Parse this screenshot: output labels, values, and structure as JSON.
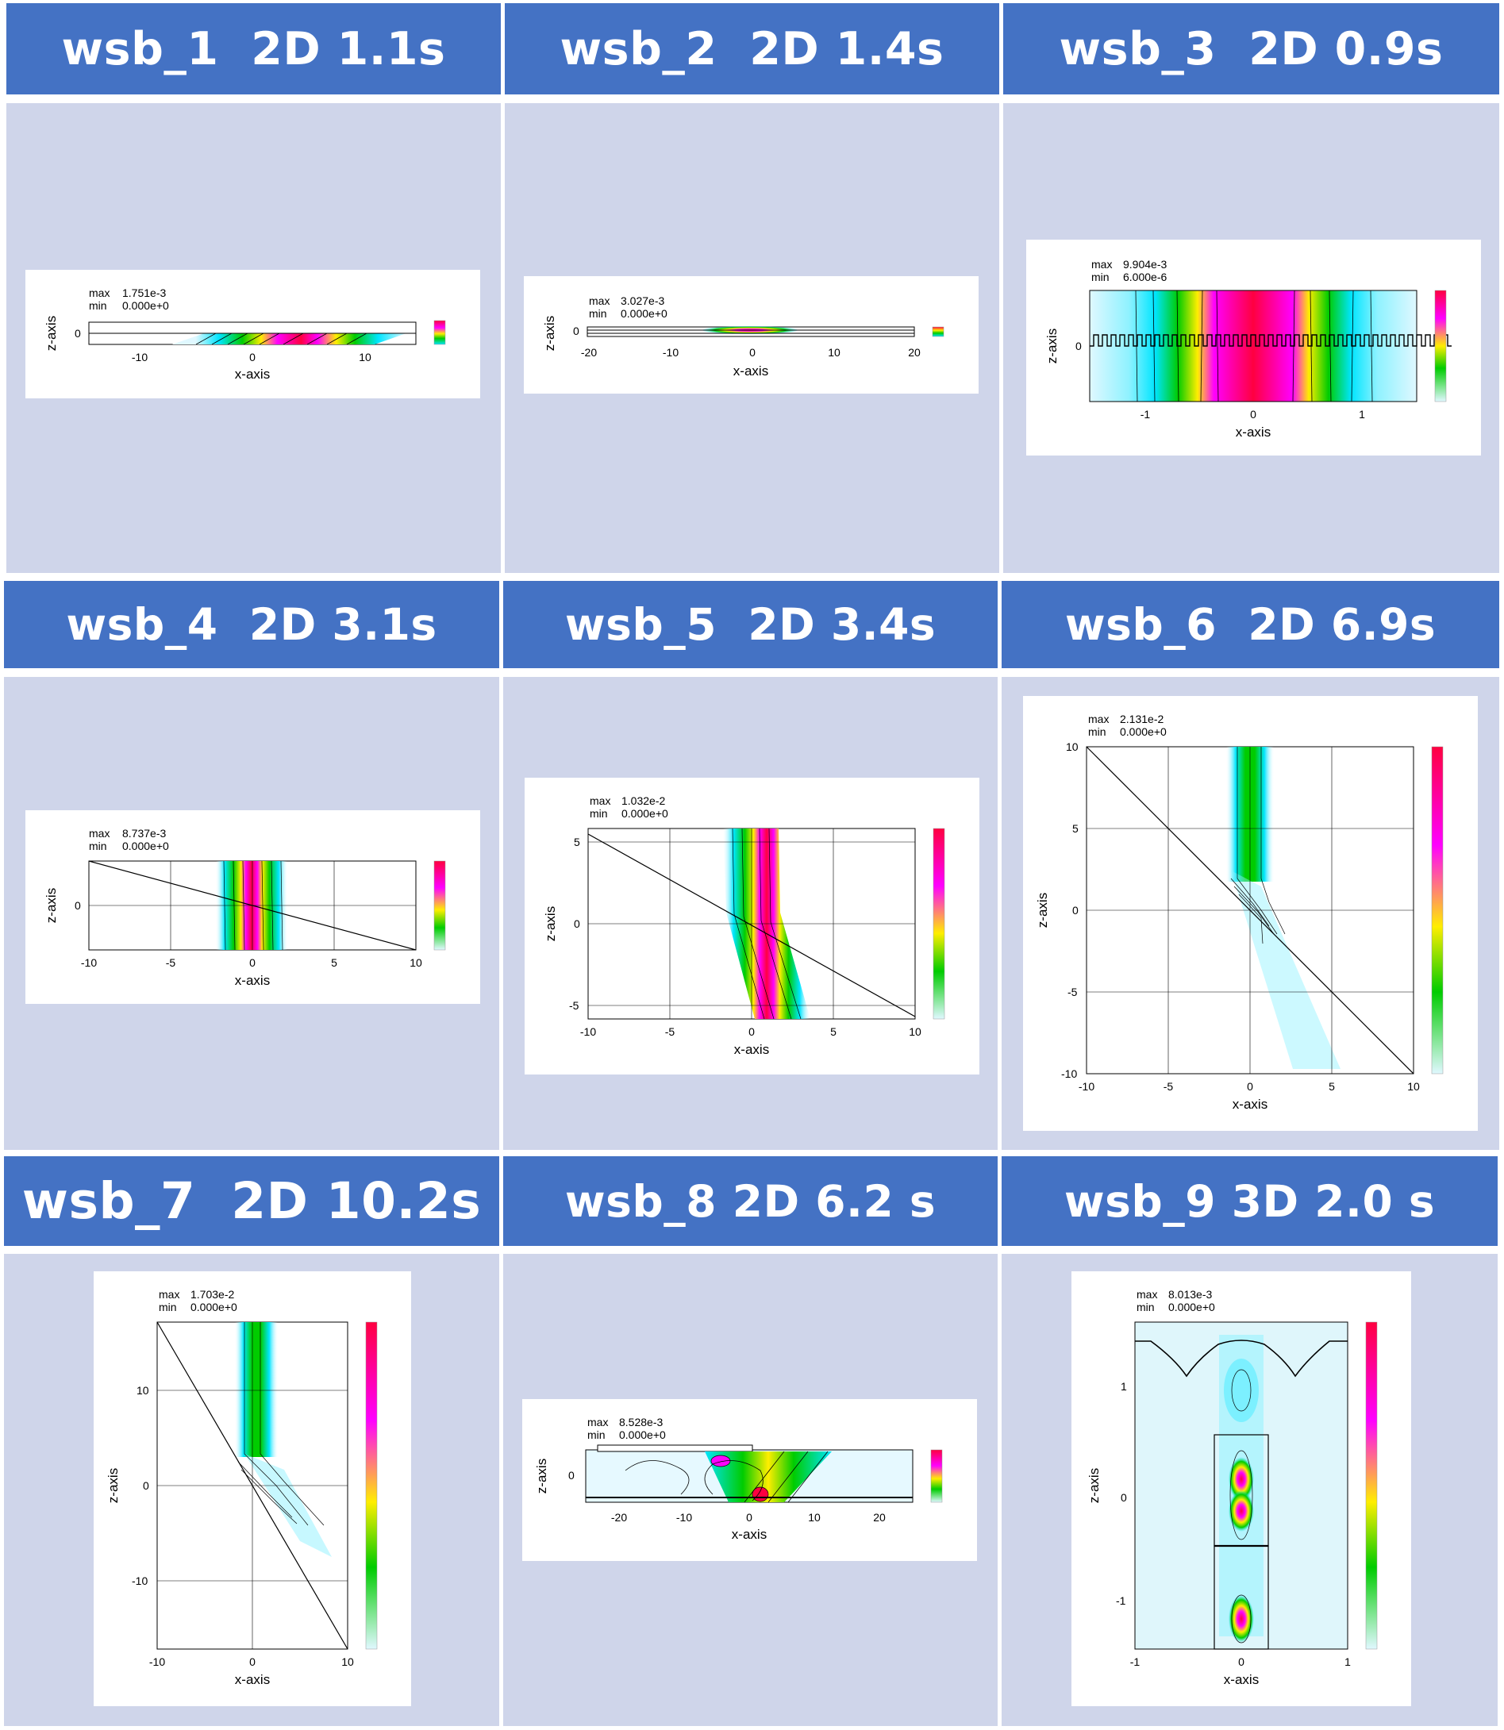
{
  "colors": {
    "header": "#4472c4",
    "body": "#cfd5ea",
    "card": "#ffffff",
    "text_on_header": "#ffffff"
  },
  "panels": [
    {
      "title": "wsb_1  2D 1.1s",
      "plot": {
        "max_label": "max",
        "max_value": "1.751e-3",
        "min_label": "min",
        "min_value": "0.000e+0",
        "xlabel": "x-axis",
        "zlabel": "z-axis",
        "xticks": [
          "-10",
          "0",
          "10"
        ],
        "zticks": [
          "0"
        ]
      }
    },
    {
      "title": "wsb_2  2D 1.4s",
      "plot": {
        "max_label": "max",
        "max_value": "3.027e-3",
        "min_label": "min",
        "min_value": "0.000e+0",
        "xlabel": "x-axis",
        "zlabel": "z-axis",
        "xticks": [
          "-20",
          "-10",
          "0",
          "10",
          "20"
        ],
        "zticks": [
          "0"
        ]
      }
    },
    {
      "title": "wsb_3  2D 0.9s",
      "plot": {
        "max_label": "max",
        "max_value": "9.904e-3",
        "min_label": "min",
        "min_value": "6.000e-6",
        "xlabel": "x-axis",
        "zlabel": "z-axis",
        "xticks": [
          "-1",
          "0",
          "1"
        ],
        "zticks": [
          "0"
        ]
      }
    },
    {
      "title": "wsb_4  2D 3.1s",
      "plot": {
        "max_label": "max",
        "max_value": "8.737e-3",
        "min_label": "min",
        "min_value": "0.000e+0",
        "xlabel": "x-axis",
        "zlabel": "z-axis",
        "xticks": [
          "-10",
          "-5",
          "0",
          "5",
          "10"
        ],
        "zticks": [
          "0"
        ]
      }
    },
    {
      "title": "wsb_5  2D 3.4s",
      "plot": {
        "max_label": "max",
        "max_value": "1.032e-2",
        "min_label": "min",
        "min_value": "0.000e+0",
        "xlabel": "x-axis",
        "zlabel": "z-axis",
        "xticks": [
          "-10",
          "-5",
          "0",
          "5",
          "10"
        ],
        "zticks": [
          "5",
          "0",
          "-5"
        ]
      }
    },
    {
      "title": "wsb_6  2D 6.9s",
      "plot": {
        "max_label": "max",
        "max_value": "2.131e-2",
        "min_label": "min",
        "min_value": "0.000e+0",
        "xlabel": "x-axis",
        "zlabel": "z-axis",
        "xticks": [
          "-10",
          "-5",
          "0",
          "5",
          "10"
        ],
        "zticks": [
          "10",
          "5",
          "0",
          "-5",
          "-10"
        ]
      }
    },
    {
      "title": "wsb_7  2D 10.2s",
      "plot": {
        "max_label": "max",
        "max_value": "1.703e-2",
        "min_label": "min",
        "min_value": "0.000e+0",
        "xlabel": "x-axis",
        "zlabel": "z-axis",
        "xticks": [
          "-10",
          "0",
          "10"
        ],
        "zticks": [
          "10",
          "0",
          "-10"
        ]
      }
    },
    {
      "title": "wsb_8 2D 6.2 s",
      "plot": {
        "max_label": "max",
        "max_value": "8.528e-3",
        "min_label": "min",
        "min_value": "0.000e+0",
        "xlabel": "x-axis",
        "zlabel": "z-axis",
        "xticks": [
          "-20",
          "-10",
          "0",
          "10",
          "20"
        ],
        "zticks": [
          "0"
        ]
      }
    },
    {
      "title": "wsb_9 3D 2.0 s",
      "plot": {
        "max_label": "max",
        "max_value": "8.013e-3",
        "min_label": "min",
        "min_value": "0.000e+0",
        "xlabel": "x-axis",
        "zlabel": "z-axis",
        "xticks": [
          "-1",
          "0",
          "1"
        ],
        "zticks": [
          "1",
          "0",
          "-1"
        ]
      }
    }
  ]
}
